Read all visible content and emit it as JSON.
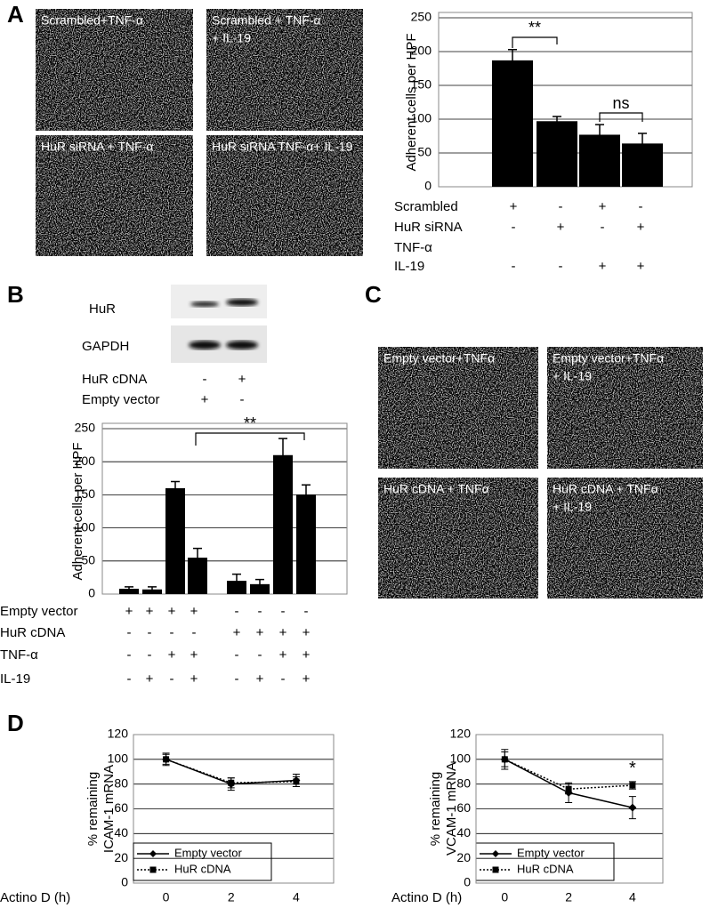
{
  "panel_labels": [
    "A",
    "B",
    "C",
    "D"
  ],
  "images_a": [
    {
      "caption": [
        "Scrambled+TNF-α"
      ]
    },
    {
      "caption": [
        "Scrambled + TNF-α",
        "+ IL-19"
      ]
    },
    {
      "caption": [
        "HuR siRNA + TNF-α"
      ]
    },
    {
      "caption": [
        "HuR siRNA TNF-α+ IL-19"
      ]
    }
  ],
  "images_c": [
    {
      "caption": [
        "Empty vector+TNFα"
      ]
    },
    {
      "caption": [
        "Empty vector+TNFα",
        "+ IL-19"
      ]
    },
    {
      "caption": [
        "HuR cDNA + TNFα"
      ]
    },
    {
      "caption": [
        "HuR cDNA + TNFα",
        "+ IL-19"
      ]
    }
  ],
  "blot": {
    "rows": [
      "HuR",
      "GAPDH"
    ],
    "conditions": [
      {
        "label": "HuR cDNA",
        "marks": [
          "-",
          "+"
        ]
      },
      {
        "label": "Empty vector",
        "marks": [
          "+",
          "-"
        ]
      }
    ]
  },
  "chart_data": [
    {
      "type": "bar",
      "ylabel": "Adherent cells per HPF",
      "values": [
        187,
        97,
        77,
        64
      ],
      "errors": [
        16,
        7,
        15,
        15
      ],
      "color": "#000000",
      "ylim": [
        0,
        250
      ],
      "yticks": [
        0,
        50,
        100,
        150,
        200,
        250
      ],
      "grid": true,
      "annotations": [
        "**",
        "ns"
      ],
      "condition_rows": [
        {
          "label": "Scrambled",
          "marks": [
            "+",
            "-",
            "+",
            "-"
          ]
        },
        {
          "label": "HuR siRNA",
          "marks": [
            "-",
            "+",
            "-",
            "+"
          ]
        },
        {
          "label": "TNF-α"
        },
        {
          "label": "IL-19",
          "marks": [
            "-",
            "-",
            "+",
            "+"
          ]
        }
      ]
    },
    {
      "type": "bar",
      "ylabel": "Adherent cells per HPF",
      "values": [
        8,
        7,
        160,
        55,
        20,
        15,
        210,
        150
      ],
      "errors": [
        3,
        4,
        10,
        14,
        10,
        7,
        25,
        15
      ],
      "color": "#000000",
      "ylim": [
        0,
        250
      ],
      "yticks": [
        0,
        50,
        100,
        150,
        200,
        250
      ],
      "grid": true,
      "annotations": [
        "**"
      ],
      "condition_rows": [
        {
          "label": "Empty vector",
          "marks": [
            "+",
            "+",
            "+",
            "+",
            "-",
            "-",
            "-",
            "-"
          ]
        },
        {
          "label": "HuR cDNA",
          "marks": [
            "-",
            "-",
            "-",
            "-",
            "+",
            "+",
            "+",
            "+"
          ]
        },
        {
          "label": "TNF-α",
          "marks": [
            "-",
            "-",
            "+",
            "+",
            "-",
            "-",
            "+",
            "+"
          ]
        },
        {
          "label": "IL-19",
          "marks": [
            "-",
            "+",
            "-",
            "+",
            "-",
            "+",
            "-",
            "+"
          ]
        }
      ]
    },
    {
      "type": "line",
      "ylabel": [
        "% remaining",
        "ICAM-1 mRNA"
      ],
      "xlabel": "Actino D (h)",
      "x": [
        0,
        2,
        4
      ],
      "xlim": [
        -1,
        5.15
      ],
      "xticks": [
        0,
        2,
        4
      ],
      "ylim": [
        0,
        120
      ],
      "yticks": [
        0,
        20,
        40,
        60,
        80,
        100,
        120
      ],
      "grid": true,
      "series": [
        {
          "name": "Empty vector",
          "color": "#000000",
          "line_style": "solid",
          "marker": "diamond",
          "values": [
            100,
            80,
            83
          ],
          "errors": [
            5,
            5,
            5
          ]
        },
        {
          "name": "HuR cDNA",
          "color": "#000000",
          "line_style": "dotted",
          "marker": "square",
          "values": [
            100,
            81,
            82
          ],
          "errors": [
            4,
            4,
            4
          ]
        }
      ]
    },
    {
      "type": "line",
      "ylabel": [
        "% remaining",
        "VCAM-1 mRNA"
      ],
      "xlabel": "Actino D (h)",
      "x": [
        0,
        2,
        4
      ],
      "xlim": [
        -0.9,
        4.95
      ],
      "xticks": [
        0,
        2,
        4
      ],
      "ylim": [
        0,
        120
      ],
      "yticks": [
        0,
        20,
        40,
        60,
        80,
        100,
        120
      ],
      "grid": true,
      "annotations": [
        "*"
      ],
      "series": [
        {
          "name": "Empty vector",
          "color": "#000000",
          "line_style": "solid",
          "marker": "diamond",
          "values": [
            100,
            73,
            61
          ],
          "errors": [
            8,
            8,
            9
          ]
        },
        {
          "name": "HuR cDNA",
          "color": "#000000",
          "line_style": "dotted",
          "marker": "square",
          "values": [
            100,
            76,
            79
          ],
          "errors": [
            6,
            4,
            3
          ]
        }
      ]
    }
  ]
}
